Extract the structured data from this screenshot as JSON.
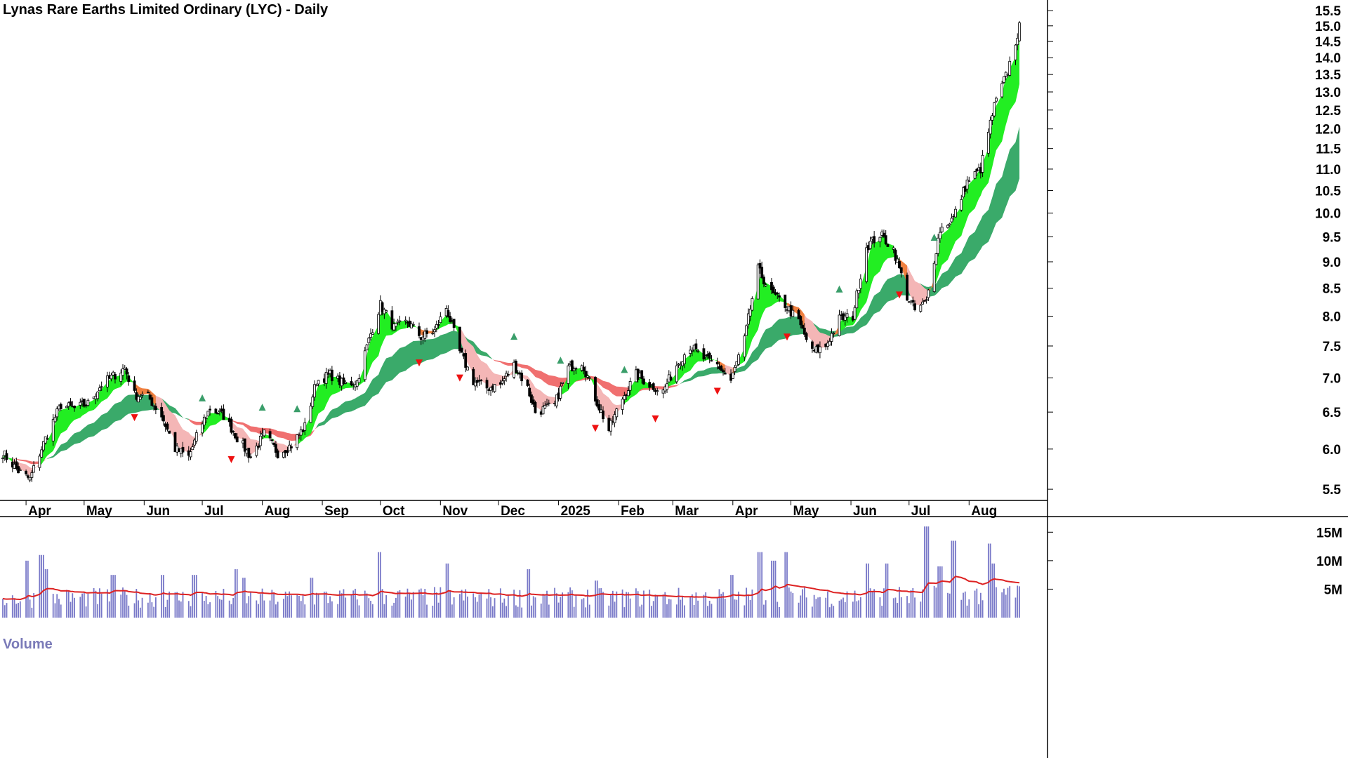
{
  "window": {
    "title": "Lynas Rare Earths Limited Ordinary (LYC) - Daily"
  },
  "volume_panel": {
    "label": "Volume"
  },
  "colors": {
    "candle_up": "#ffffff",
    "candle_down": "#000000",
    "ribbon_short_up": "#22ee22",
    "ribbon_short_down": "#f08040",
    "ribbon_short_weak": "#f4b6b6",
    "ribbon_long_up": "#3aaa6a",
    "ribbon_long_down": "#f07070",
    "signal_up": "#3a9e6a",
    "signal_down": "#ee1111",
    "volume_bar": "#7878c8",
    "volume_avg": "#dd2222"
  },
  "chart_data": [
    {
      "type": "candlestick",
      "title": "Lynas Rare Earths Limited Ordinary (LYC) - Daily",
      "xlabel": "",
      "ylabel": "",
      "ylim": [
        5.2,
        15.6
      ],
      "y_scale": "linear",
      "y_ticks": [
        "5.5",
        "6.0",
        "6.5",
        "7.0",
        "7.5",
        "8.0",
        "8.5",
        "9.0",
        "9.5",
        "10.0",
        "10.5",
        "11.0",
        "11.5",
        "12.0",
        "12.5",
        "13.0",
        "13.5",
        "14.0",
        "14.5",
        "15.0",
        "15.5"
      ],
      "x_ticks": [
        "Apr",
        "May",
        "Jun",
        "Jul",
        "Aug",
        "Sep",
        "Oct",
        "Nov",
        "Dec",
        "2025",
        "Feb",
        "Mar",
        "Apr",
        "May",
        "Jun",
        "Jul",
        "Aug"
      ],
      "grid": false,
      "price_anchors": [
        [
          "2024-03-20",
          5.95
        ],
        [
          "2024-03-28",
          5.72
        ],
        [
          "2024-04-03",
          5.62
        ],
        [
          "2024-04-12",
          6.2
        ],
        [
          "2024-04-19",
          6.6
        ],
        [
          "2024-04-26",
          6.55
        ],
        [
          "2024-05-03",
          6.62
        ],
        [
          "2024-05-10",
          6.9
        ],
        [
          "2024-05-17",
          7.05
        ],
        [
          "2024-05-22",
          7.15
        ],
        [
          "2024-05-27",
          6.75
        ],
        [
          "2024-06-03",
          6.72
        ],
        [
          "2024-06-10",
          6.45
        ],
        [
          "2024-06-17",
          6.0
        ],
        [
          "2024-06-24",
          5.9
        ],
        [
          "2024-07-01",
          6.35
        ],
        [
          "2024-07-05",
          6.55
        ],
        [
          "2024-07-12",
          6.45
        ],
        [
          "2024-07-19",
          6.15
        ],
        [
          "2024-07-26",
          5.9
        ],
        [
          "2024-08-02",
          6.2
        ],
        [
          "2024-08-09",
          5.95
        ],
        [
          "2024-08-16",
          6.05
        ],
        [
          "2024-08-23",
          6.3
        ],
        [
          "2024-08-29",
          6.95
        ],
        [
          "2024-09-05",
          7.05
        ],
        [
          "2024-09-12",
          6.9
        ],
        [
          "2024-09-19",
          6.95
        ],
        [
          "2024-09-26",
          7.7
        ],
        [
          "2024-10-01",
          8.2
        ],
        [
          "2024-10-08",
          7.8
        ],
        [
          "2024-10-15",
          7.9
        ],
        [
          "2024-10-22",
          7.65
        ],
        [
          "2024-10-29",
          7.75
        ],
        [
          "2024-11-04",
          8.15
        ],
        [
          "2024-11-11",
          7.4
        ],
        [
          "2024-11-18",
          6.95
        ],
        [
          "2024-11-25",
          6.85
        ],
        [
          "2024-12-02",
          6.9
        ],
        [
          "2024-12-09",
          7.2
        ],
        [
          "2024-12-16",
          6.85
        ],
        [
          "2024-12-20",
          6.5
        ],
        [
          "2024-12-30",
          6.6
        ],
        [
          "2025-01-06",
          7.15
        ],
        [
          "2025-01-13",
          7.25
        ],
        [
          "2025-01-20",
          6.7
        ],
        [
          "2025-01-27",
          6.25
        ],
        [
          "2025-02-03",
          6.7
        ],
        [
          "2025-02-10",
          7.05
        ],
        [
          "2025-02-17",
          6.9
        ],
        [
          "2025-02-24",
          6.8
        ],
        [
          "2025-03-03",
          7.2
        ],
        [
          "2025-03-10",
          7.5
        ],
        [
          "2025-03-17",
          7.3
        ],
        [
          "2025-03-24",
          7.2
        ],
        [
          "2025-03-31",
          6.95
        ],
        [
          "2025-04-07",
          7.6
        ],
        [
          "2025-04-14",
          8.85
        ],
        [
          "2025-04-21",
          8.4
        ],
        [
          "2025-04-28",
          8.2
        ],
        [
          "2025-05-05",
          7.9
        ],
        [
          "2025-05-12",
          7.4
        ],
        [
          "2025-05-19",
          7.5
        ],
        [
          "2025-05-26",
          7.95
        ],
        [
          "2025-06-02",
          8.0
        ],
        [
          "2025-06-09",
          9.3
        ],
        [
          "2025-06-16",
          9.55
        ],
        [
          "2025-06-23",
          9.25
        ],
        [
          "2025-06-30",
          8.35
        ],
        [
          "2025-07-04",
          8.1
        ],
        [
          "2025-07-10",
          8.25
        ],
        [
          "2025-07-17",
          9.65
        ],
        [
          "2025-07-24",
          9.9
        ],
        [
          "2025-07-31",
          10.7
        ],
        [
          "2025-08-07",
          11.0
        ],
        [
          "2025-08-14",
          12.6
        ],
        [
          "2025-08-21",
          13.6
        ],
        [
          "2025-08-27",
          14.95
        ]
      ],
      "volume": {
        "ylim": [
          0,
          17.5
        ],
        "unit": "M",
        "y_ticks": [
          "5M",
          "10M",
          "15M"
        ],
        "spikes": [
          [
            "2024-04-01",
            10
          ],
          [
            "2024-04-09",
            11
          ],
          [
            "2024-04-12",
            8.5
          ],
          [
            "2024-05-16",
            7.5
          ],
          [
            "2024-06-10",
            7.5
          ],
          [
            "2024-06-27",
            7.5
          ],
          [
            "2024-07-19",
            8.5
          ],
          [
            "2024-07-22",
            7
          ],
          [
            "2024-08-26",
            7
          ],
          [
            "2024-09-30",
            11.5
          ],
          [
            "2024-11-04",
            9.5
          ],
          [
            "2024-12-16",
            8.5
          ],
          [
            "2025-01-20",
            6.5
          ],
          [
            "2025-03-31",
            7.5
          ],
          [
            "2025-04-15",
            11.5
          ],
          [
            "2025-04-22",
            10
          ],
          [
            "2025-04-28",
            11.5
          ],
          [
            "2025-06-09",
            9.5
          ],
          [
            "2025-06-20",
            9.5
          ],
          [
            "2025-07-10",
            16
          ],
          [
            "2025-07-17",
            9
          ],
          [
            "2025-07-24",
            13.5
          ],
          [
            "2025-08-11",
            13
          ],
          [
            "2025-08-13",
            9.5
          ]
        ]
      }
    }
  ]
}
